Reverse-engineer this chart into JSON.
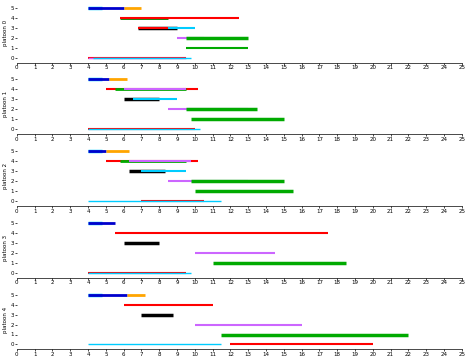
{
  "n_subplots": 5,
  "xlim": [
    0,
    25
  ],
  "ylim_bottom": -0.5,
  "ylim_top": 5.5,
  "yticks": [
    0,
    1,
    2,
    3,
    4,
    5
  ],
  "xticks": [
    0,
    1,
    2,
    3,
    4,
    5,
    6,
    7,
    8,
    9,
    10,
    11,
    12,
    13,
    14,
    15,
    16,
    17,
    18,
    19,
    20,
    21,
    22,
    23,
    24,
    25
  ],
  "subplots": [
    {
      "title": "platoon 0",
      "bars": [
        {
          "y": 5,
          "xstart": 4.0,
          "xend": 4.8,
          "color": "#00CCFF",
          "lw": 2.5
        },
        {
          "y": 5,
          "xstart": 4.0,
          "xend": 6.0,
          "color": "#0000CC",
          "lw": 2
        },
        {
          "y": 5,
          "xstart": 6.0,
          "xend": 7.0,
          "color": "#FFA500",
          "lw": 2
        },
        {
          "y": 4,
          "xstart": 5.8,
          "xend": 8.5,
          "color": "#008000",
          "lw": 2
        },
        {
          "y": 4,
          "xstart": 5.8,
          "xend": 12.5,
          "color": "#FF0000",
          "lw": 1.5
        },
        {
          "y": 3,
          "xstart": 6.8,
          "xend": 9.0,
          "color": "#000000",
          "lw": 2.5
        },
        {
          "y": 3,
          "xstart": 6.8,
          "xend": 8.5,
          "color": "#FF0000",
          "lw": 1.5
        },
        {
          "y": 3,
          "xstart": 8.5,
          "xend": 10.0,
          "color": "#00CCFF",
          "lw": 1.5
        },
        {
          "y": 2,
          "xstart": 9.0,
          "xend": 10.5,
          "color": "#CC66FF",
          "lw": 1.5
        },
        {
          "y": 2,
          "xstart": 9.5,
          "xend": 13.0,
          "color": "#00AA00",
          "lw": 2.5
        },
        {
          "y": 1,
          "xstart": 9.5,
          "xend": 13.0,
          "color": "#00AA00",
          "lw": 1.5
        },
        {
          "y": 0,
          "xstart": 4.0,
          "xend": 9.5,
          "color": "#FF0000",
          "lw": 1.5
        },
        {
          "y": 0,
          "xstart": 4.0,
          "xend": 9.5,
          "color": "#CC66FF",
          "lw": 1
        },
        {
          "y": 0,
          "xstart": 4.3,
          "xend": 9.8,
          "color": "#00CCFF",
          "lw": 1
        }
      ]
    },
    {
      "title": "platoon 1",
      "bars": [
        {
          "y": 5,
          "xstart": 4.0,
          "xend": 4.8,
          "color": "#00CCFF",
          "lw": 2.5
        },
        {
          "y": 5,
          "xstart": 4.0,
          "xend": 5.2,
          "color": "#0000CC",
          "lw": 2
        },
        {
          "y": 5,
          "xstart": 5.2,
          "xend": 6.2,
          "color": "#FFA500",
          "lw": 2
        },
        {
          "y": 4,
          "xstart": 5.0,
          "xend": 10.2,
          "color": "#FF0000",
          "lw": 1.5
        },
        {
          "y": 4,
          "xstart": 5.5,
          "xend": 9.5,
          "color": "#00AA00",
          "lw": 2
        },
        {
          "y": 4,
          "xstart": 6.0,
          "xend": 9.5,
          "color": "#CC66FF",
          "lw": 1.5
        },
        {
          "y": 3,
          "xstart": 6.0,
          "xend": 8.0,
          "color": "#000000",
          "lw": 2.5
        },
        {
          "y": 3,
          "xstart": 6.5,
          "xend": 9.0,
          "color": "#00CCFF",
          "lw": 1.5
        },
        {
          "y": 2,
          "xstart": 8.5,
          "xend": 13.0,
          "color": "#CC66FF",
          "lw": 1.5
        },
        {
          "y": 2,
          "xstart": 9.5,
          "xend": 13.5,
          "color": "#00AA00",
          "lw": 2.5
        },
        {
          "y": 1,
          "xstart": 9.8,
          "xend": 15.0,
          "color": "#00AA00",
          "lw": 2.5
        },
        {
          "y": 0,
          "xstart": 4.0,
          "xend": 10.0,
          "color": "#FF0000",
          "lw": 1.5
        },
        {
          "y": 0,
          "xstart": 4.0,
          "xend": 10.3,
          "color": "#00CCFF",
          "lw": 1
        }
      ]
    },
    {
      "title": "platoon 2",
      "bars": [
        {
          "y": 5,
          "xstart": 4.0,
          "xend": 4.8,
          "color": "#00CCFF",
          "lw": 2.5
        },
        {
          "y": 5,
          "xstart": 4.0,
          "xend": 5.0,
          "color": "#0000CC",
          "lw": 2
        },
        {
          "y": 5,
          "xstart": 5.0,
          "xend": 6.3,
          "color": "#FFA500",
          "lw": 2
        },
        {
          "y": 4,
          "xstart": 5.0,
          "xend": 10.2,
          "color": "#FF0000",
          "lw": 1.5
        },
        {
          "y": 4,
          "xstart": 5.8,
          "xend": 9.5,
          "color": "#00AA00",
          "lw": 2
        },
        {
          "y": 4,
          "xstart": 6.3,
          "xend": 9.8,
          "color": "#CC66FF",
          "lw": 1.5
        },
        {
          "y": 3,
          "xstart": 6.3,
          "xend": 8.3,
          "color": "#000000",
          "lw": 2.5
        },
        {
          "y": 3,
          "xstart": 7.0,
          "xend": 9.5,
          "color": "#00CCFF",
          "lw": 1.5
        },
        {
          "y": 2,
          "xstart": 8.5,
          "xend": 13.0,
          "color": "#CC66FF",
          "lw": 1.5
        },
        {
          "y": 2,
          "xstart": 9.8,
          "xend": 15.0,
          "color": "#00AA00",
          "lw": 2.5
        },
        {
          "y": 1,
          "xstart": 10.0,
          "xend": 15.5,
          "color": "#00AA00",
          "lw": 2.5
        },
        {
          "y": 0,
          "xstart": 7.0,
          "xend": 10.5,
          "color": "#FF0000",
          "lw": 1.5
        },
        {
          "y": 0,
          "xstart": 4.0,
          "xend": 11.5,
          "color": "#00CCFF",
          "lw": 1
        }
      ]
    },
    {
      "title": "platoon 3",
      "bars": [
        {
          "y": 5,
          "xstart": 4.0,
          "xend": 4.8,
          "color": "#00CCFF",
          "lw": 2.5
        },
        {
          "y": 5,
          "xstart": 4.0,
          "xend": 5.5,
          "color": "#0000CC",
          "lw": 2
        },
        {
          "y": 4,
          "xstart": 5.5,
          "xend": 17.5,
          "color": "#FF0000",
          "lw": 1.5
        },
        {
          "y": 3,
          "xstart": 6.0,
          "xend": 8.0,
          "color": "#000000",
          "lw": 2.5
        },
        {
          "y": 2,
          "xstart": 10.0,
          "xend": 14.5,
          "color": "#CC66FF",
          "lw": 1.5
        },
        {
          "y": 1,
          "xstart": 11.0,
          "xend": 18.5,
          "color": "#00AA00",
          "lw": 2.5
        },
        {
          "y": 0,
          "xstart": 4.0,
          "xend": 9.5,
          "color": "#FF0000",
          "lw": 1.5
        },
        {
          "y": 0,
          "xstart": 4.0,
          "xend": 9.8,
          "color": "#00CCFF",
          "lw": 1
        }
      ]
    },
    {
      "title": "platoon 4",
      "bars": [
        {
          "y": 5,
          "xstart": 4.0,
          "xend": 4.8,
          "color": "#00CCFF",
          "lw": 2.5
        },
        {
          "y": 5,
          "xstart": 4.0,
          "xend": 6.2,
          "color": "#0000CC",
          "lw": 2
        },
        {
          "y": 5,
          "xstart": 6.2,
          "xend": 7.2,
          "color": "#FFA500",
          "lw": 2
        },
        {
          "y": 4,
          "xstart": 6.0,
          "xend": 11.0,
          "color": "#FF0000",
          "lw": 1.5
        },
        {
          "y": 3,
          "xstart": 7.0,
          "xend": 8.8,
          "color": "#000000",
          "lw": 2.5
        },
        {
          "y": 2,
          "xstart": 10.0,
          "xend": 16.0,
          "color": "#CC66FF",
          "lw": 1.5
        },
        {
          "y": 1,
          "xstart": 11.5,
          "xend": 22.0,
          "color": "#00AA00",
          "lw": 2.5
        },
        {
          "y": 0,
          "xstart": 12.0,
          "xend": 20.0,
          "color": "#FF0000",
          "lw": 1.5
        },
        {
          "y": 0,
          "xstart": 4.0,
          "xend": 11.5,
          "color": "#00CCFF",
          "lw": 1
        }
      ]
    }
  ]
}
